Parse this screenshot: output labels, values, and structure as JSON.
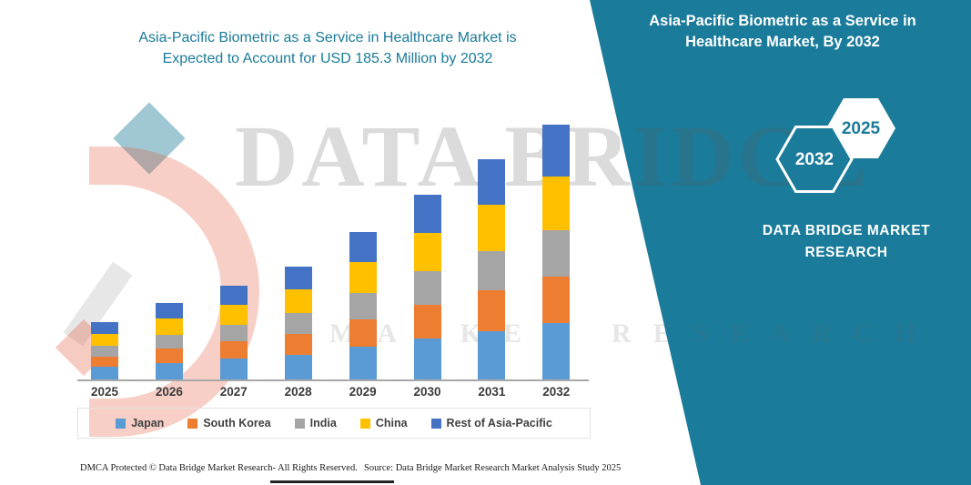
{
  "header": {
    "title_line1": "Asia-Pacific Biometric as a Service in Healthcare Market is",
    "title_line2": "Expected to Account for USD 185.3 Million by 2032"
  },
  "side_panel": {
    "title": "Asia-Pacific Biometric as a Service in Healthcare Market, By 2032",
    "hexagon_back_label": "2032",
    "hexagon_front_label": "2025",
    "brand_line1": "DATA BRIDGE MARKET",
    "brand_line2": "RESEARCH",
    "panel_color": "#1a7b9b"
  },
  "watermark": {
    "text_main": "DATA BRIDGE",
    "text_sub": "MARKET RESEARCH"
  },
  "footer": {
    "dmca": "DMCA Protected © Data Bridge Market Research-  All Rights Reserved.",
    "source": "Source: Data Bridge Market Research  Market Analysis Study 2025"
  },
  "chart_data": {
    "type": "bar",
    "stacked": true,
    "title": "Asia-Pacific Biometric as a Service in Healthcare Market is Expected to Account for USD 185.3 Million by 2032",
    "unit": "USD Million",
    "grid": false,
    "legend_position": "bottom",
    "categories": [
      "2025",
      "2026",
      "2027",
      "2028",
      "2029",
      "2030",
      "2031",
      "2032"
    ],
    "series": [
      {
        "name": "Japan",
        "color": "#5B9BD5",
        "values": [
          9.2,
          12.2,
          15.0,
          18.1,
          23.6,
          29.6,
          35.2,
          40.8
        ]
      },
      {
        "name": "South Korea",
        "color": "#ED7D31",
        "values": [
          7.7,
          10.3,
          12.6,
          15.2,
          19.8,
          24.9,
          29.6,
          34.3
        ]
      },
      {
        "name": "India",
        "color": "#A5A5A5",
        "values": [
          7.5,
          10.0,
          12.3,
          14.8,
          19.3,
          24.2,
          28.8,
          33.4
        ]
      },
      {
        "name": "China",
        "color": "#FFC000",
        "values": [
          8.8,
          11.7,
          14.3,
          17.2,
          22.5,
          28.2,
          33.6,
          38.9
        ]
      },
      {
        "name": "Rest of Asia-Pacific",
        "color": "#4472C4",
        "values": [
          8.5,
          11.4,
          14.0,
          16.8,
          22.0,
          27.5,
          33.0,
          37.9
        ]
      }
    ],
    "estimated_totals": [
      41.7,
      55.6,
      68.2,
      82.1,
      107.2,
      134.4,
      160.2,
      185.3
    ],
    "ylim": [
      0,
      200
    ]
  }
}
